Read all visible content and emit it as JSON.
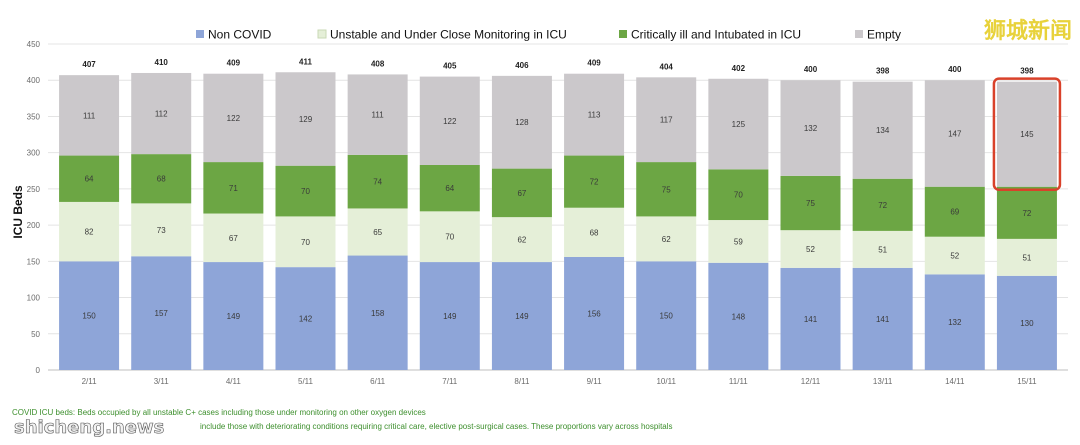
{
  "chart_data": {
    "type": "bar",
    "stacked": true,
    "categories": [
      "2/11",
      "3/11",
      "4/11",
      "5/11",
      "6/11",
      "7/11",
      "8/11",
      "9/11",
      "10/11",
      "11/11",
      "12/11",
      "13/11",
      "14/11",
      "15/11"
    ],
    "series": [
      {
        "name": "Non COVID",
        "color": "#8ea5d8",
        "values": [
          150,
          157,
          149,
          142,
          158,
          149,
          149,
          156,
          150,
          148,
          141,
          141,
          132,
          130
        ]
      },
      {
        "name": "Unstable and Under Close Monitoring in ICU",
        "color": "#e5efd8",
        "values": [
          82,
          73,
          67,
          70,
          65,
          70,
          62,
          68,
          62,
          59,
          52,
          51,
          52,
          51
        ]
      },
      {
        "name": "Critically ill and Intubated in ICU",
        "color": "#6ca644",
        "values": [
          64,
          68,
          71,
          70,
          74,
          64,
          67,
          72,
          75,
          70,
          75,
          72,
          69,
          72
        ]
      },
      {
        "name": "Empty",
        "color": "#cbc8cb",
        "values": [
          111,
          112,
          122,
          129,
          111,
          122,
          128,
          113,
          117,
          125,
          132,
          134,
          147,
          145
        ]
      }
    ],
    "totals": [
      407,
      410,
      409,
      411,
      408,
      405,
      406,
      409,
      404,
      402,
      400,
      398,
      400,
      398
    ],
    "yticks": [
      0,
      50,
      100,
      150,
      200,
      250,
      300,
      350,
      400,
      450
    ],
    "ylim": [
      0,
      450
    ],
    "ylabel": "ICU Beds",
    "xlabel": "",
    "legend_position": "top",
    "highlight": {
      "category": "15/11",
      "series": "Empty",
      "color": "#d9412a"
    }
  },
  "footnotes": [
    "COVID ICU beds: Beds occupied by all unstable C+ cases including those under monitoring on other oxygen devices",
    "include those with deteriorating conditions requiring critical care, elective post-surgical cases. These proportions vary across hospitals"
  ],
  "watermarks": {
    "top_right": "狮城新闻",
    "bottom_left": "shicheng.news"
  }
}
